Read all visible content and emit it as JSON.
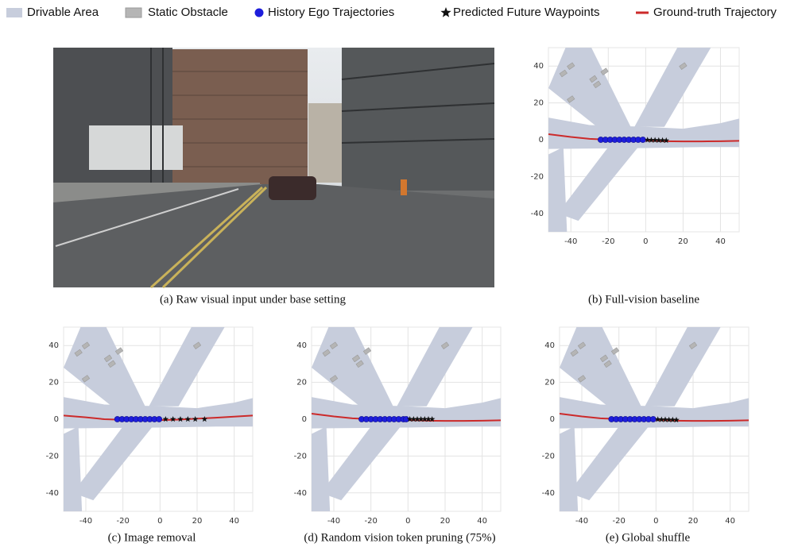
{
  "legend": [
    {
      "label": "Drivable Area",
      "color": "#c7cddc"
    },
    {
      "label": "Static Obstacle",
      "color": "#b5b5b5"
    },
    {
      "label": "History Ego Trajectories",
      "color": "#1d1ddb"
    },
    {
      "label": "Predicted Future Waypoints",
      "color": "#111111"
    },
    {
      "label": "Ground-truth Trajectory",
      "color": "#cc2a2a"
    }
  ],
  "image_caption": "(a) Raw visual input under base setting",
  "chart_data": [
    {
      "type": "scatter",
      "caption": "(b) Full-vision baseline",
      "xlim": [
        -52,
        50
      ],
      "ylim": [
        -50,
        50
      ],
      "xticks": [
        -40,
        -20,
        0,
        20,
        40
      ],
      "yticks": [
        -40,
        -20,
        0,
        20,
        40
      ],
      "grid": true,
      "series": [
        {
          "x": [
            -24,
            -21.5,
            -19,
            -16.5,
            -14,
            -11.5,
            -9,
            -6.5,
            -4,
            -1.5
          ],
          "values": [
            0,
            0,
            0,
            0,
            0,
            0,
            0,
            0,
            0,
            0
          ],
          "color": "#1d1ddb"
        },
        {
          "x": [
            1,
            3,
            5,
            7,
            9,
            11
          ],
          "values": [
            -0.1,
            -0.2,
            -0.2,
            -0.3,
            -0.3,
            -0.4
          ],
          "color": "#111111"
        },
        {
          "x": [
            -52,
            -40,
            -30,
            -20,
            -10,
            0,
            10,
            20,
            30,
            40,
            50
          ],
          "values": [
            3,
            1.5,
            0.5,
            0,
            -0.3,
            -0.5,
            -0.8,
            -0.9,
            -0.9,
            -0.8,
            -0.6
          ],
          "color": "#cc2a2a"
        }
      ]
    },
    {
      "type": "scatter",
      "caption": "(c) Image removal",
      "xlim": [
        -52,
        50
      ],
      "ylim": [
        -50,
        50
      ],
      "xticks": [
        -40,
        -20,
        0,
        20,
        40
      ],
      "yticks": [
        -40,
        -20,
        0,
        20,
        40
      ],
      "grid": true,
      "series": [
        {
          "x": [
            -23,
            -20.5,
            -18,
            -15.5,
            -13,
            -10.5,
            -8,
            -5.5,
            -3,
            -0.5
          ],
          "values": [
            0,
            0,
            0,
            0,
            0,
            0,
            0,
            0,
            0,
            0
          ],
          "color": "#1d1ddb"
        },
        {
          "x": [
            3,
            7,
            11,
            15,
            19,
            24
          ],
          "values": [
            0,
            0,
            0,
            0,
            0,
            0
          ],
          "color": "#111111"
        },
        {
          "x": [
            -52,
            -40,
            -30,
            -20,
            -10,
            0,
            10,
            20,
            30,
            40,
            50
          ],
          "values": [
            2,
            1,
            0,
            -0.3,
            -0.5,
            -0.5,
            -0.2,
            0.3,
            0.8,
            1.4,
            2
          ],
          "color": "#cc2a2a"
        }
      ]
    },
    {
      "type": "scatter",
      "caption": "(d) Random vision token pruning (75%)",
      "xlim": [
        -52,
        50
      ],
      "ylim": [
        -50,
        50
      ],
      "xticks": [
        -40,
        -20,
        0,
        20,
        40
      ],
      "yticks": [
        -40,
        -20,
        0,
        20,
        40
      ],
      "grid": true,
      "series": [
        {
          "x": [
            -25,
            -22.5,
            -20,
            -17.5,
            -15,
            -12.5,
            -10,
            -7.5,
            -5,
            -2.5,
            -1
          ],
          "values": [
            0,
            0,
            0,
            0,
            0,
            0,
            0,
            0,
            0,
            0,
            0
          ],
          "color": "#1d1ddb"
        },
        {
          "x": [
            1,
            3,
            5,
            7,
            9,
            11,
            13
          ],
          "values": [
            0,
            0,
            0,
            0,
            0,
            0,
            0
          ],
          "color": "#111111"
        },
        {
          "x": [
            -52,
            -40,
            -30,
            -20,
            -10,
            0,
            10,
            20,
            30,
            40,
            50
          ],
          "values": [
            3,
            1.5,
            0.5,
            0,
            -0.3,
            -0.5,
            -0.8,
            -0.9,
            -0.9,
            -0.8,
            -0.6
          ],
          "color": "#cc2a2a"
        }
      ]
    },
    {
      "type": "scatter",
      "caption": "(e) Global shuffle",
      "xlim": [
        -52,
        50
      ],
      "ylim": [
        -50,
        50
      ],
      "xticks": [
        -40,
        -20,
        0,
        20,
        40
      ],
      "yticks": [
        -40,
        -20,
        0,
        20,
        40
      ],
      "grid": true,
      "series": [
        {
          "x": [
            -24,
            -21.5,
            -19,
            -16.5,
            -14,
            -11.5,
            -9,
            -6.5,
            -4,
            -1.5
          ],
          "values": [
            0,
            0,
            0,
            0,
            0,
            0,
            0,
            0,
            0,
            0
          ],
          "color": "#1d1ddb"
        },
        {
          "x": [
            1,
            3,
            5,
            7,
            9,
            11
          ],
          "values": [
            -0.1,
            -0.2,
            -0.2,
            -0.3,
            -0.3,
            -0.4
          ],
          "color": "#111111"
        },
        {
          "x": [
            -52,
            -40,
            -30,
            -20,
            -10,
            0,
            10,
            20,
            30,
            40,
            50
          ],
          "values": [
            3,
            1.5,
            0.5,
            0,
            -0.3,
            -0.5,
            -0.8,
            -0.9,
            -0.9,
            -0.8,
            -0.6
          ],
          "color": "#cc2a2a"
        }
      ]
    }
  ]
}
